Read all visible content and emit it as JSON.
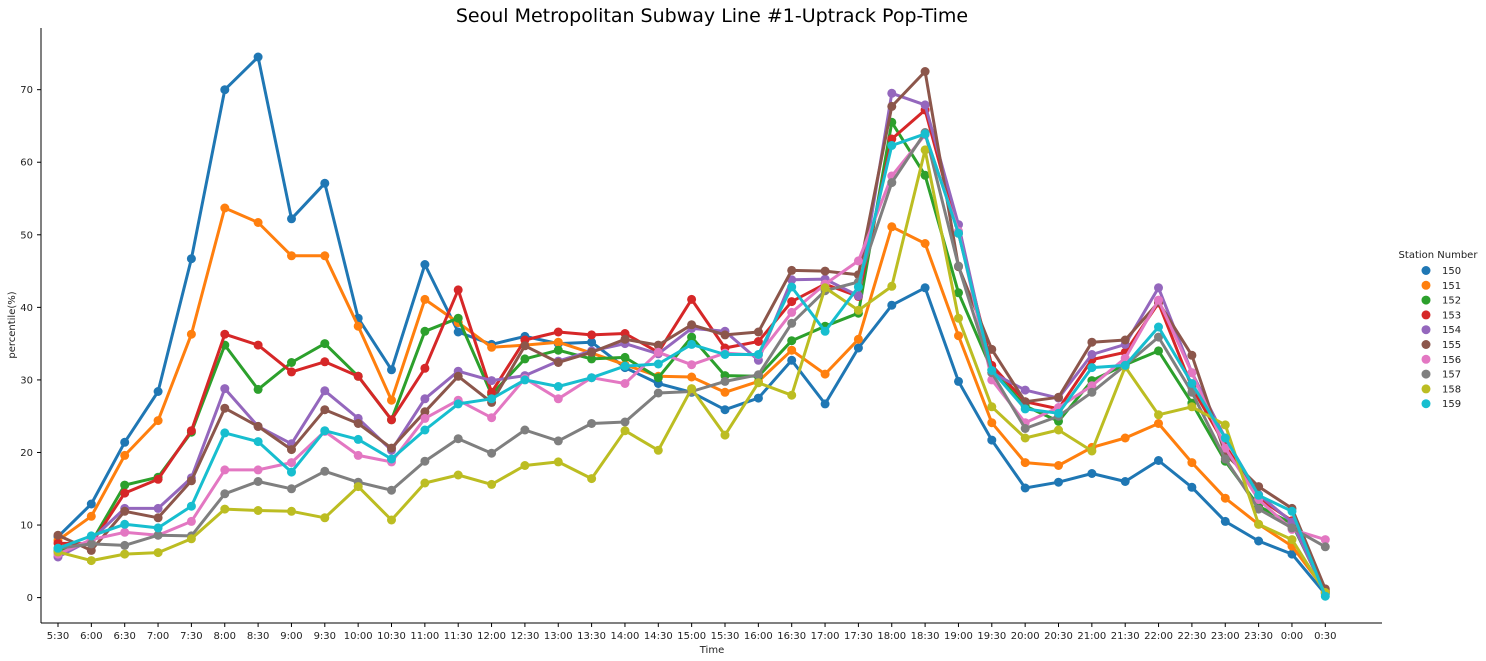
{
  "chart_data": {
    "type": "line",
    "title": "Seoul Metropolitan Subway Line #1-Uptrack Pop-Time",
    "xlabel": "Time",
    "ylabel": "percentile(%)",
    "ylim": [
      -3.5,
      78.5
    ],
    "yticks": [
      0,
      10,
      20,
      30,
      40,
      50,
      60,
      70
    ],
    "grid": false,
    "legend": {
      "title": "Station Number",
      "placement": "right"
    },
    "categories": [
      "5:30",
      "6:00",
      "6:30",
      "7:00",
      "7:30",
      "8:00",
      "8:30",
      "9:00",
      "9:30",
      "10:00",
      "10:30",
      "11:00",
      "11:30",
      "12:00",
      "12:30",
      "13:00",
      "13:30",
      "14:00",
      "14:30",
      "15:00",
      "15:30",
      "16:00",
      "16:30",
      "17:00",
      "17:30",
      "18:00",
      "18:30",
      "19:00",
      "19:30",
      "20:00",
      "20:30",
      "21:00",
      "21:30",
      "22:00",
      "22:30",
      "23:00",
      "23:30",
      "0:00",
      "0:30"
    ],
    "series": [
      {
        "name": "150",
        "color": "#1f77b4",
        "values": [
          8.4,
          12.9,
          21.4,
          28.4,
          46.7,
          70.0,
          74.5,
          52.2,
          57.1,
          38.5,
          31.4,
          45.9,
          36.6,
          34.9,
          36.0,
          35.0,
          35.2,
          31.7,
          29.5,
          28.3,
          25.9,
          27.5,
          32.7,
          26.7,
          34.4,
          40.3,
          42.7,
          29.8,
          21.7,
          15.1,
          15.9,
          17.1,
          16.0,
          18.9,
          15.2,
          10.5,
          7.8,
          6.0,
          0.5
        ]
      },
      {
        "name": "151",
        "color": "#ff7f0e",
        "values": [
          7.9,
          11.2,
          19.6,
          24.4,
          36.3,
          53.7,
          51.7,
          47.1,
          47.1,
          37.4,
          27.2,
          41.1,
          37.9,
          34.5,
          34.8,
          35.2,
          33.7,
          32.1,
          30.5,
          30.4,
          28.3,
          29.8,
          34.1,
          30.8,
          35.6,
          51.1,
          48.8,
          36.1,
          24.1,
          18.6,
          18.2,
          20.7,
          22.0,
          24.0,
          18.6,
          13.7,
          10.1,
          7.1,
          1.0
        ]
      },
      {
        "name": "152",
        "color": "#2ca02c",
        "values": [
          6.4,
          7.6,
          15.5,
          16.6,
          22.8,
          34.8,
          28.7,
          32.4,
          35.0,
          30.5,
          24.5,
          36.7,
          38.5,
          28.0,
          32.9,
          34.1,
          32.9,
          33.1,
          30.3,
          35.9,
          30.6,
          30.5,
          35.4,
          37.4,
          39.2,
          65.5,
          58.2,
          42.0,
          31.4,
          26.4,
          24.3,
          29.9,
          32.1,
          34.0,
          26.8,
          18.8,
          12.6,
          10.2,
          0.7
        ]
      },
      {
        "name": "153",
        "color": "#d62728",
        "values": [
          7.5,
          7.4,
          14.4,
          16.3,
          23.0,
          36.3,
          34.8,
          31.1,
          32.5,
          30.5,
          24.5,
          31.6,
          42.4,
          28.3,
          35.5,
          36.6,
          36.2,
          36.4,
          33.8,
          41.1,
          34.4,
          35.3,
          40.8,
          43.2,
          41.5,
          63.2,
          67.2,
          50.2,
          32.0,
          27.0,
          26.0,
          32.8,
          33.8,
          40.6,
          29.0,
          21.0,
          13.7,
          10.6,
          0.8
        ]
      },
      {
        "name": "154",
        "color": "#9467bd",
        "values": [
          5.6,
          8.0,
          12.3,
          12.3,
          16.5,
          28.8,
          23.6,
          21.2,
          28.5,
          24.7,
          20.3,
          27.4,
          31.2,
          29.9,
          30.6,
          32.6,
          34.0,
          35.0,
          33.6,
          37.1,
          36.7,
          32.7,
          43.8,
          43.9,
          41.6,
          69.5,
          67.9,
          51.4,
          31.0,
          28.6,
          27.5,
          33.5,
          34.9,
          42.7,
          31.0,
          22.0,
          14.2,
          10.4,
          0.6
        ]
      },
      {
        "name": "155",
        "color": "#8c564b",
        "values": [
          8.6,
          6.5,
          11.9,
          11.0,
          16.1,
          26.1,
          23.6,
          20.4,
          25.9,
          24.0,
          20.6,
          25.6,
          30.5,
          26.9,
          34.7,
          32.4,
          33.8,
          35.6,
          34.8,
          37.6,
          36.2,
          36.6,
          45.1,
          45.0,
          44.5,
          67.7,
          72.5,
          45.6,
          34.2,
          27.0,
          27.6,
          35.2,
          35.5,
          40.7,
          33.4,
          19.8,
          15.3,
          12.3,
          1.2
        ]
      },
      {
        "name": "156",
        "color": "#e377c2",
        "values": [
          6.0,
          8.0,
          9.0,
          8.6,
          10.5,
          17.6,
          17.6,
          18.6,
          22.9,
          19.6,
          18.7,
          24.7,
          27.2,
          24.8,
          30.2,
          27.4,
          30.3,
          29.5,
          33.8,
          32.1,
          33.7,
          33.4,
          39.3,
          43.2,
          46.4,
          58.1,
          63.8,
          50.5,
          30.0,
          24.1,
          26.2,
          29.2,
          33.0,
          41.0,
          31.0,
          20.6,
          13.5,
          9.4,
          8.0
        ]
      },
      {
        "name": "157",
        "color": "#7f7f7f",
        "values": [
          6.8,
          7.4,
          7.2,
          8.6,
          8.5,
          14.3,
          16.0,
          15.0,
          17.4,
          15.9,
          14.8,
          18.8,
          21.9,
          19.9,
          23.1,
          21.6,
          24.0,
          24.2,
          28.2,
          28.4,
          29.8,
          30.7,
          37.8,
          42.3,
          43.5,
          57.2,
          64.1,
          45.7,
          31.0,
          23.3,
          25.0,
          28.3,
          32.0,
          35.9,
          28.3,
          19.1,
          12.2,
          9.6,
          7.0
        ]
      },
      {
        "name": "158",
        "color": "#bcbd22",
        "values": [
          6.3,
          5.1,
          6.0,
          6.2,
          8.1,
          12.2,
          12.0,
          11.9,
          11.0,
          15.3,
          10.7,
          15.8,
          16.9,
          15.6,
          18.2,
          18.7,
          16.4,
          23.0,
          20.3,
          28.8,
          22.4,
          29.6,
          27.9,
          42.7,
          39.6,
          42.9,
          61.7,
          38.5,
          26.3,
          22.0,
          23.1,
          20.2,
          31.8,
          25.2,
          26.3,
          23.8,
          10.1,
          8.0,
          0.7
        ]
      },
      {
        "name": "159",
        "color": "#17becf",
        "values": [
          6.8,
          8.5,
          10.1,
          9.6,
          12.6,
          22.7,
          21.5,
          17.3,
          23.0,
          21.8,
          19.1,
          23.1,
          26.7,
          27.4,
          30.0,
          29.1,
          30.3,
          31.9,
          32.2,
          34.9,
          33.5,
          33.5,
          42.8,
          36.7,
          42.8,
          62.3,
          63.9,
          50.2,
          31.3,
          26.0,
          25.4,
          31.7,
          32.0,
          37.3,
          29.5,
          22.0,
          14.1,
          11.9,
          0.2
        ]
      }
    ]
  }
}
